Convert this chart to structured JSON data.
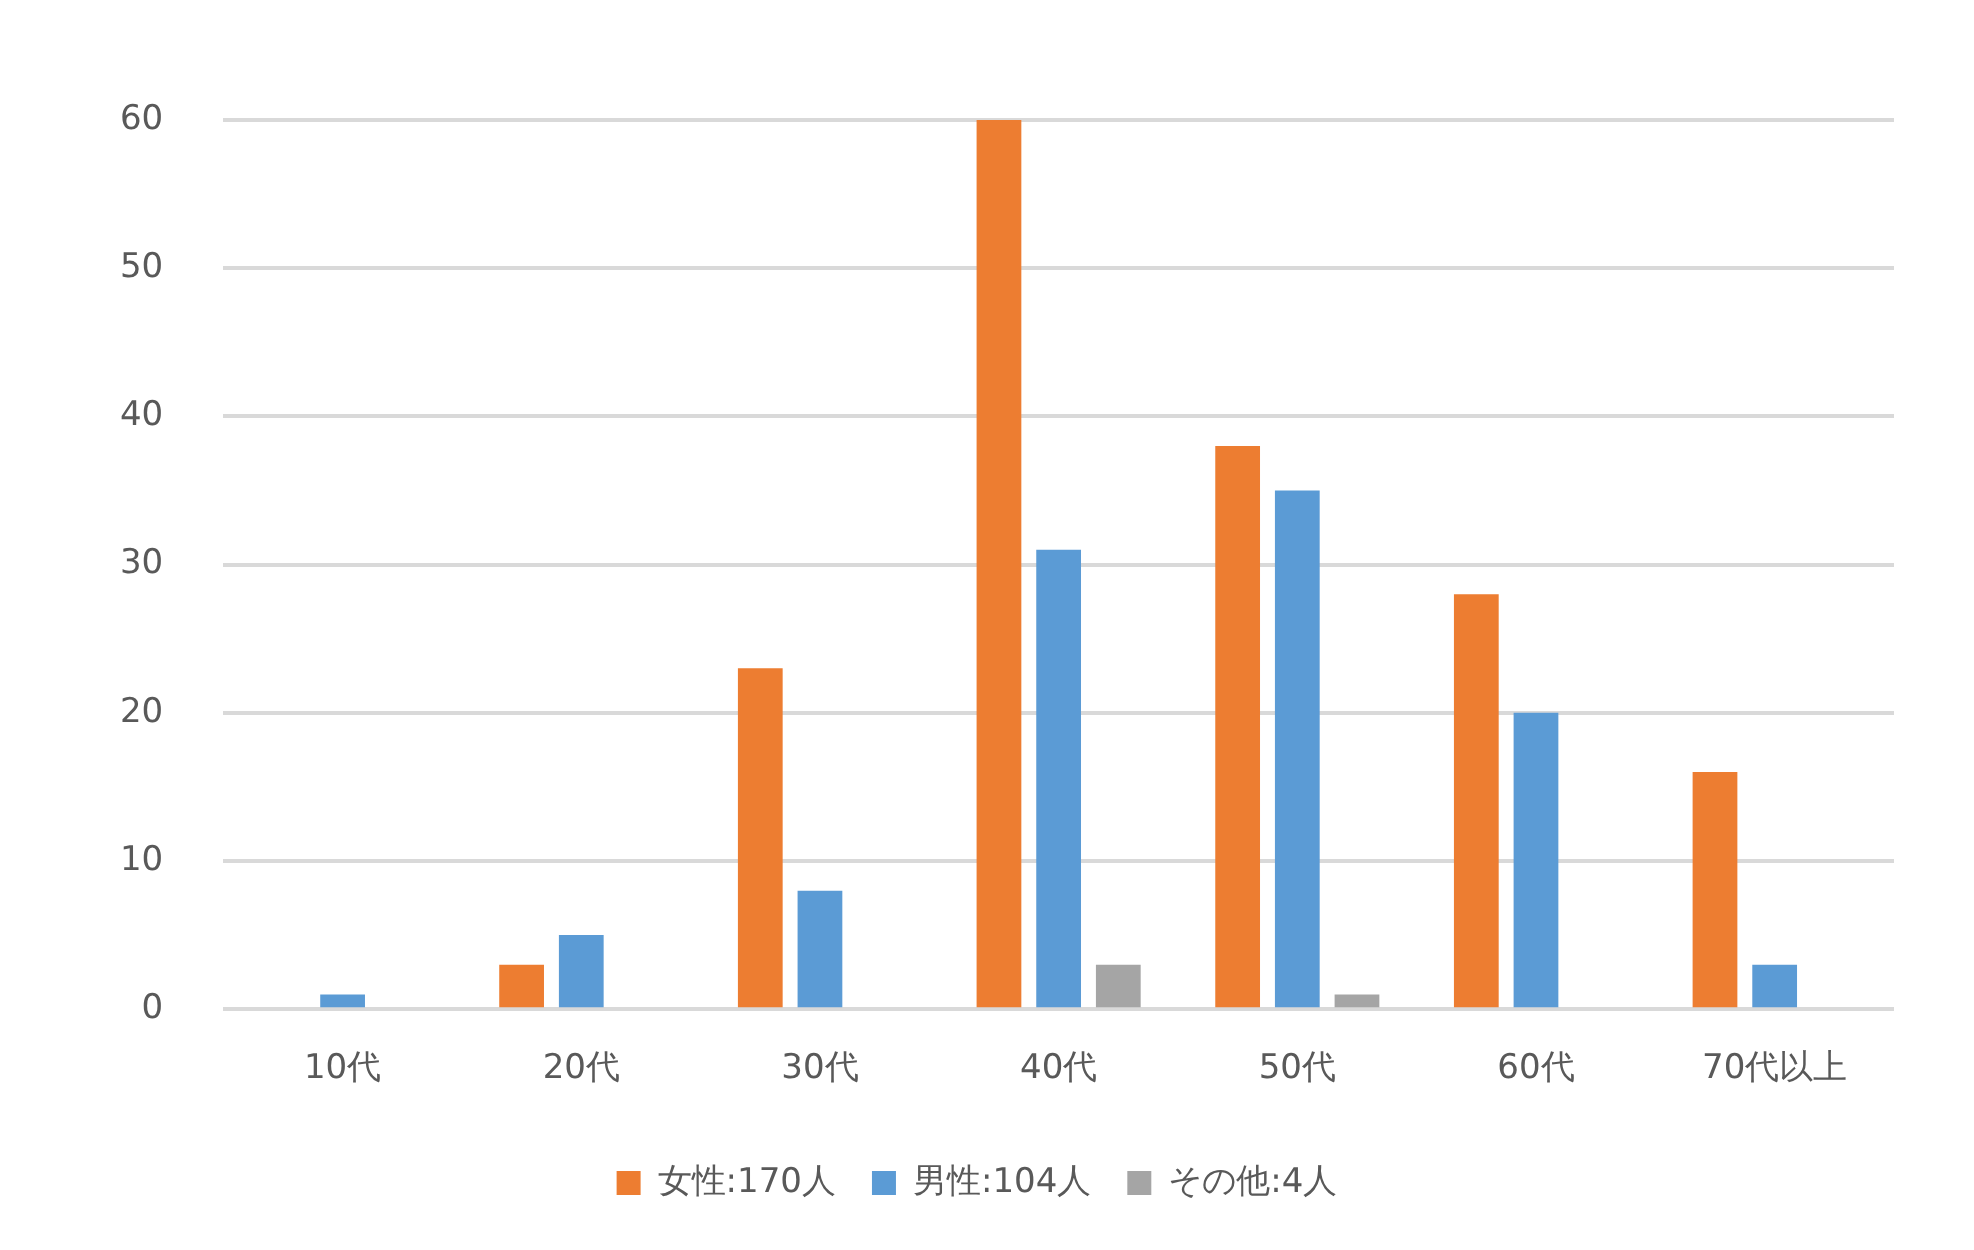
{
  "chart_data": {
    "type": "bar",
    "categories": [
      "10代",
      "20代",
      "30代",
      "40代",
      "50代",
      "60代",
      "70代以上"
    ],
    "series": [
      {
        "name": "女性:170人",
        "color": "#ed7d31",
        "values": [
          0,
          3,
          23,
          60,
          38,
          28,
          16
        ]
      },
      {
        "name": "男性:104人",
        "color": "#5b9bd5",
        "values": [
          1,
          5,
          8,
          31,
          35,
          20,
          3
        ]
      },
      {
        "name": "その他:4人",
        "color": "#a5a5a5",
        "values": [
          0,
          0,
          0,
          3,
          1,
          0,
          0
        ]
      }
    ],
    "ylim": [
      0,
      60
    ],
    "yticks": [
      0,
      10,
      20,
      30,
      40,
      50,
      60
    ],
    "grid": "y",
    "legend": "bottom"
  }
}
